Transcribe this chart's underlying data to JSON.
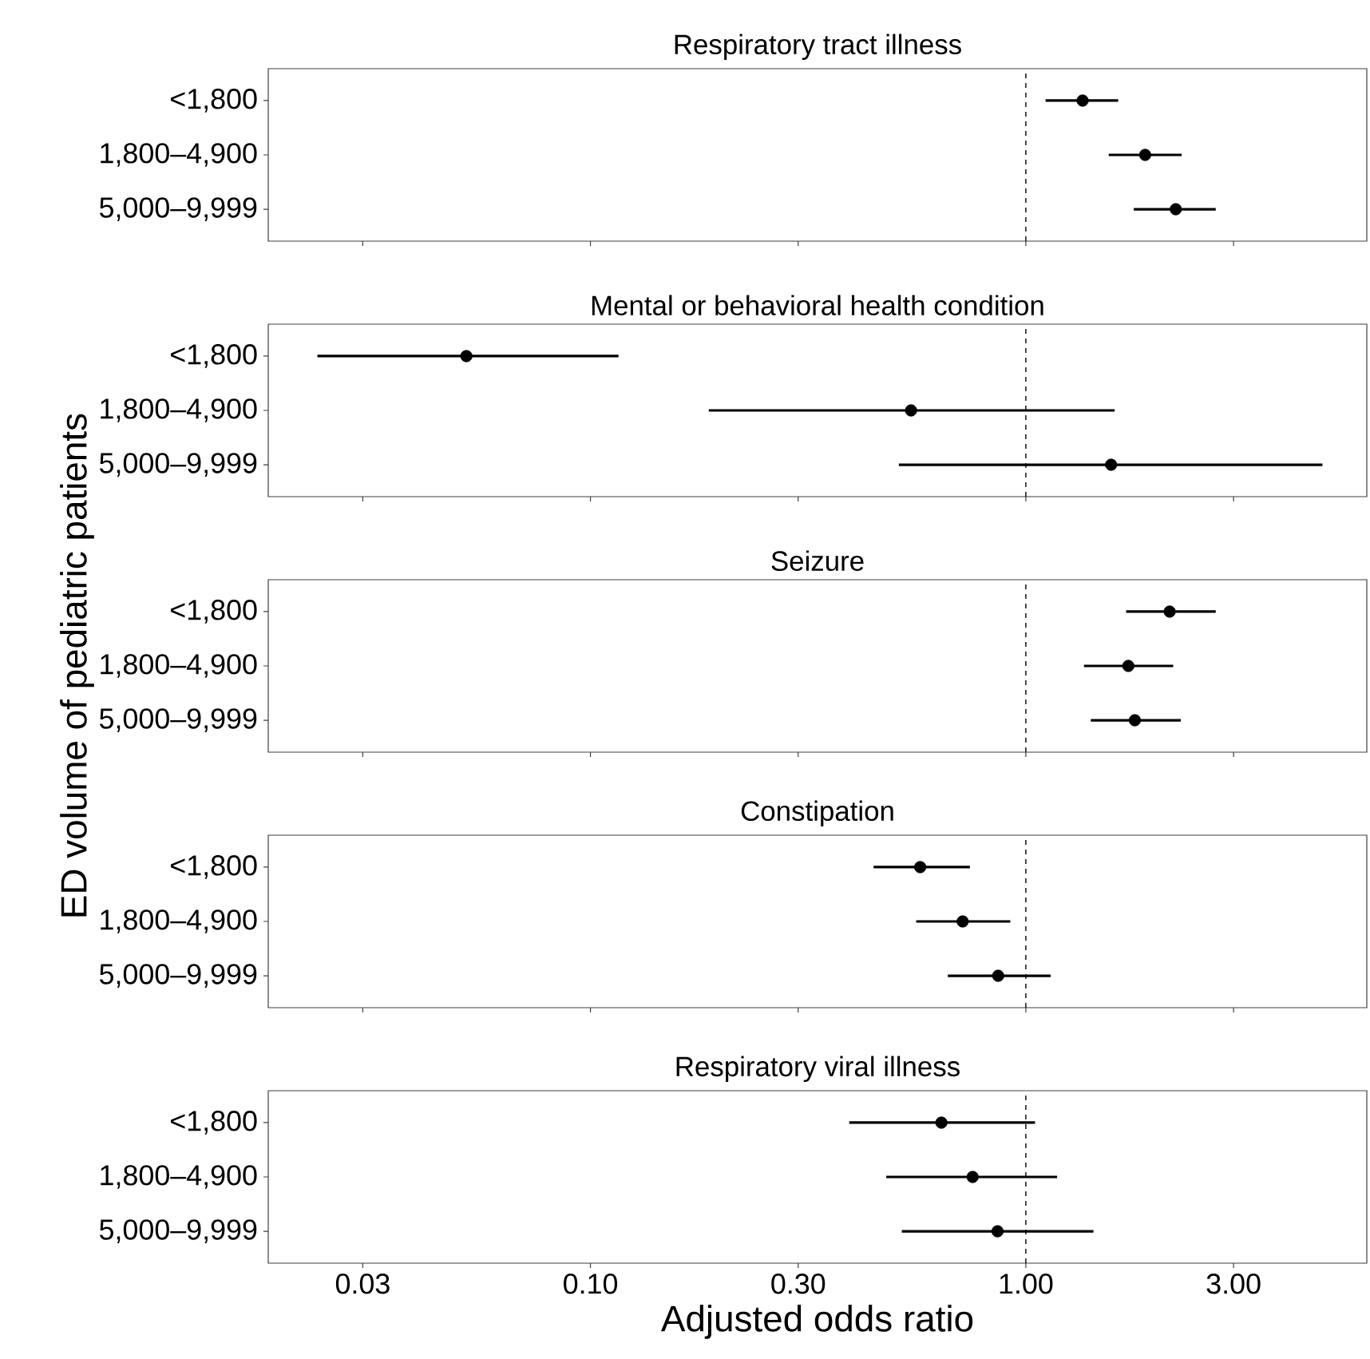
{
  "chart_data": [
    {
      "type": "scatter",
      "title": "Respiratory tract illness",
      "orientation": "horizontal",
      "log": "x",
      "marker": "circle",
      "color": "#000000",
      "categories": [
        "<1,800",
        "1,800–4,900",
        "5,000–9,999"
      ],
      "values": [
        1.35,
        1.88,
        2.21
      ],
      "errors": [
        [
          1.11,
          1.63
        ],
        [
          1.55,
          2.28
        ],
        [
          1.77,
          2.73
        ]
      ],
      "xlim": [
        0.0182,
        6.07
      ],
      "tick_labels": "y",
      "xticks": [
        0.03,
        0.1,
        0.3,
        1,
        3
      ],
      "ref_lines": [
        {
          "axis": "x",
          "value": 1,
          "line_style": "dashed"
        }
      ]
    },
    {
      "type": "scatter",
      "title": "Mental or behavioral health condition",
      "orientation": "horizontal",
      "log": "x",
      "marker": "circle",
      "color": "#000000",
      "categories": [
        "<1,800",
        "1,800–4,900",
        "5,000–9,999"
      ],
      "values": [
        0.0519,
        0.545,
        1.57
      ],
      "errors": [
        [
          0.0236,
          0.116
        ],
        [
          0.187,
          1.6
        ],
        [
          0.511,
          4.8
        ]
      ],
      "xlim": [
        0.0182,
        6.07
      ],
      "tick_labels": "y",
      "xticks": [
        0.03,
        0.1,
        0.3,
        1,
        3
      ],
      "ref_lines": [
        {
          "axis": "x",
          "value": 1,
          "line_style": "dashed"
        }
      ]
    },
    {
      "type": "scatter",
      "title": "Seizure",
      "ylabel": "ED volume of pediatric patients",
      "orientation": "horizontal",
      "log": "x",
      "marker": "circle",
      "color": "#000000",
      "categories": [
        "<1,800",
        "1,800–4,900",
        "5,000–9,999"
      ],
      "values": [
        2.14,
        1.72,
        1.78
      ],
      "errors": [
        [
          1.7,
          2.73
        ],
        [
          1.36,
          2.18
        ],
        [
          1.41,
          2.27
        ]
      ],
      "xlim": [
        0.0182,
        6.07
      ],
      "tick_labels": "y",
      "xticks": [
        0.03,
        0.1,
        0.3,
        1,
        3
      ],
      "ref_lines": [
        {
          "axis": "x",
          "value": 1,
          "line_style": "dashed"
        }
      ]
    },
    {
      "type": "scatter",
      "title": "Constipation",
      "orientation": "horizontal",
      "log": "x",
      "marker": "circle",
      "color": "#000000",
      "categories": [
        "<1,800",
        "1,800–4,900",
        "5,000–9,999"
      ],
      "values": [
        0.572,
        0.716,
        0.864
      ],
      "errors": [
        [
          0.447,
          0.744
        ],
        [
          0.56,
          0.921
        ],
        [
          0.662,
          1.14
        ]
      ],
      "xlim": [
        0.0182,
        6.07
      ],
      "tick_labels": "y",
      "xticks": [
        0.03,
        0.1,
        0.3,
        1,
        3
      ],
      "ref_lines": [
        {
          "axis": "x",
          "value": 1,
          "line_style": "dashed"
        }
      ]
    },
    {
      "type": "scatter",
      "title": "Respiratory viral illness",
      "xlabel": "Adjusted odds ratio",
      "orientation": "horizontal",
      "log": "x",
      "marker": "circle",
      "color": "#000000",
      "categories": [
        "<1,800",
        "1,800–4,900",
        "5,000–9,999"
      ],
      "values": [
        0.64,
        0.755,
        0.861
      ],
      "errors": [
        [
          0.393,
          1.05
        ],
        [
          0.478,
          1.18
        ],
        [
          0.519,
          1.43
        ]
      ],
      "xlim": [
        0.0182,
        6.07
      ],
      "xticks": [
        {
          "value": 0.03,
          "label": "0.03"
        },
        {
          "value": 0.1,
          "label": "0.10"
        },
        {
          "value": 0.3,
          "label": "0.30"
        },
        {
          "value": 1,
          "label": "1.00"
        },
        {
          "value": 3,
          "label": "3.00"
        }
      ],
      "ref_lines": [
        {
          "axis": "x",
          "value": 1,
          "line_style": "dashed"
        }
      ]
    }
  ]
}
